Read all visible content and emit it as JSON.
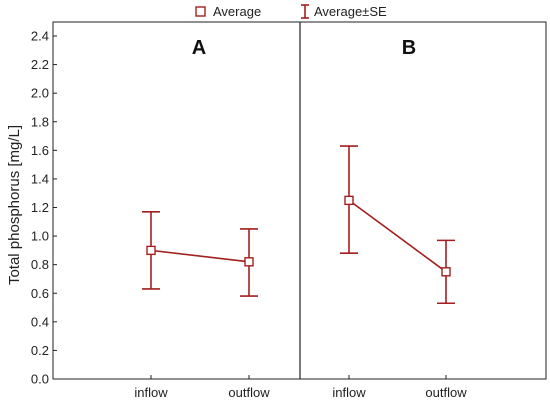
{
  "chart_data": {
    "type": "line",
    "ylabel": "Total phosphorus [mg/L]",
    "ylim": [
      0,
      2.4
    ],
    "yticks": [
      0.0,
      0.2,
      0.4,
      0.6,
      0.8,
      1.0,
      1.2,
      1.4,
      1.6,
      1.8,
      2.0,
      2.2,
      2.4
    ],
    "ytick_labels": [
      "0.0",
      "0.2",
      "0.4",
      "0.6",
      "0.8",
      "1.0",
      "1.2",
      "1.4",
      "1.6",
      "1.8",
      "2.0",
      "2.2",
      "2.4"
    ],
    "legend": {
      "position": "top",
      "average_label": "Average",
      "se_label": "Average±SE"
    },
    "series_color": "#a31f1f",
    "panels": [
      {
        "label": "A",
        "categories": [
          "inflow",
          "outflow"
        ],
        "average": [
          0.9,
          0.82
        ],
        "lower": [
          0.63,
          0.58
        ],
        "upper": [
          1.17,
          1.05
        ]
      },
      {
        "label": "B",
        "categories": [
          "inflow",
          "outflow"
        ],
        "average": [
          1.25,
          0.75
        ],
        "lower": [
          0.88,
          0.53
        ],
        "upper": [
          1.63,
          0.97
        ]
      }
    ]
  }
}
